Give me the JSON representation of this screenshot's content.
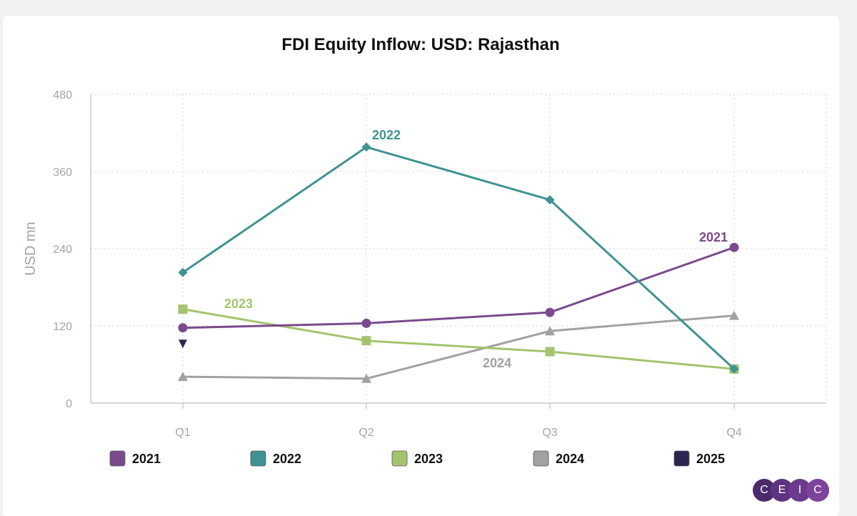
{
  "colors": {
    "y2021": "#7b4a8d",
    "y2022": "#3f9393",
    "y2023": "#a3c46d",
    "y2024": "#a1a1a3",
    "y2025": "#2e2450",
    "grid": "#d0d0d6",
    "axis_text": "#a3a3b0",
    "title": "#111111"
  },
  "chart_data": {
    "type": "line",
    "title": "FDI Equity Inflow: USD: Rajasthan",
    "xlabel": "",
    "ylabel": "USD mn",
    "ylim": [
      0,
      480
    ],
    "yticks": [
      0,
      120,
      240,
      360,
      480
    ],
    "categories": [
      "Q1",
      "Q2",
      "Q3",
      "Q4"
    ],
    "grid": true,
    "legend_position": "bottom",
    "series": [
      {
        "name": "2021",
        "marker": "circle",
        "values": [
          117,
          124,
          141,
          242
        ],
        "label": "2021"
      },
      {
        "name": "2022",
        "marker": "diamond",
        "values": [
          203,
          398,
          316,
          53
        ],
        "label": "2022"
      },
      {
        "name": "2023",
        "marker": "square",
        "values": [
          146,
          97,
          80,
          53
        ],
        "label": "2023"
      },
      {
        "name": "2024",
        "marker": "triangle",
        "values": [
          41,
          38,
          112,
          136
        ],
        "label": "2024"
      },
      {
        "name": "2025",
        "marker": "triangle-down",
        "values": [
          92,
          null,
          null,
          null
        ],
        "label": ""
      }
    ]
  },
  "logo": {
    "letters": [
      "C",
      "E",
      "I",
      "C"
    ]
  }
}
